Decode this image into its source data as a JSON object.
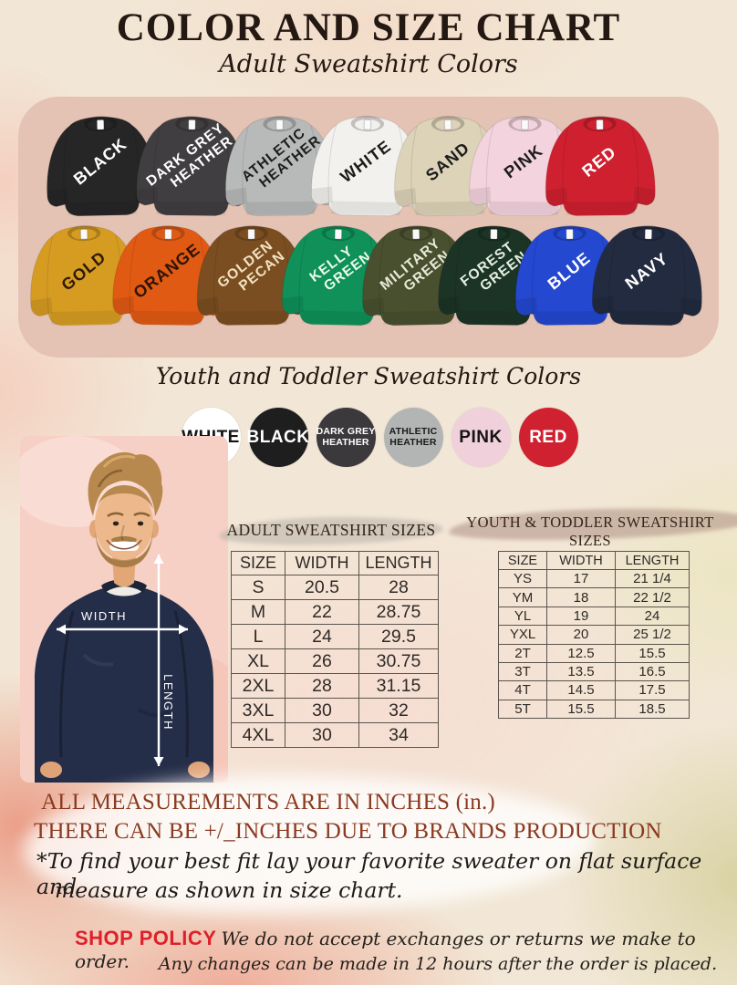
{
  "header": {
    "title": "COLOR AND SIZE CHART",
    "subtitle": "Adult Sweatshirt Colors",
    "youth_heading": "Youth and Toddler Sweatshirt Colors"
  },
  "adult_shirts": [
    {
      "name": "BLACK",
      "lines": [
        "BLACK"
      ],
      "fill": "#262626",
      "label": "#ffffff"
    },
    {
      "name": "DARK GREY HEATHER",
      "lines": [
        "DARK GREY",
        "HEATHER"
      ],
      "fill": "#413e42",
      "label": "#ffffff"
    },
    {
      "name": "ATHLETIC HEATHER",
      "lines": [
        "ATHLETIC",
        "HEATHER"
      ],
      "fill": "#b7bab9",
      "label": "#1c1c1c"
    },
    {
      "name": "WHITE",
      "lines": [
        "WHITE"
      ],
      "fill": "#f2f1ee",
      "label": "#1c1c1c"
    },
    {
      "name": "SAND",
      "lines": [
        "SAND"
      ],
      "fill": "#ddd3b8",
      "label": "#1c1c1c"
    },
    {
      "name": "PINK",
      "lines": [
        "PINK"
      ],
      "fill": "#f3d3de",
      "label": "#1c1c1c"
    },
    {
      "name": "RED",
      "lines": [
        "RED"
      ],
      "fill": "#cf2030",
      "label": "#ffffff"
    },
    {
      "name": "GOLD",
      "lines": [
        "GOLD"
      ],
      "fill": "#d69c22",
      "label": "#2f1a05"
    },
    {
      "name": "ORANGE",
      "lines": [
        "ORANGE"
      ],
      "fill": "#e05a14",
      "label": "#2d1405"
    },
    {
      "name": "GOLDEN PECAN",
      "lines": [
        "GOLDEN",
        "PECAN"
      ],
      "fill": "#7b4e21",
      "label": "#f3e3c2"
    },
    {
      "name": "KELLY GREEN",
      "lines": [
        "KELLY",
        "GREEN"
      ],
      "fill": "#0f9159",
      "label": "#eafbe9"
    },
    {
      "name": "MILITARY GREEN",
      "lines": [
        "MILITARY",
        "GREEN"
      ],
      "fill": "#49502f",
      "label": "#e9ead8"
    },
    {
      "name": "FOREST GREEN",
      "lines": [
        "FOREST",
        "GREEN"
      ],
      "fill": "#1c3425",
      "label": "#e3efdf"
    },
    {
      "name": "BLUE",
      "lines": [
        "BLUE"
      ],
      "fill": "#2448cf",
      "label": "#ffffff"
    },
    {
      "name": "NAVY",
      "lines": [
        "NAVY"
      ],
      "fill": "#222b40",
      "label": "#ffffff"
    }
  ],
  "youth_colors": [
    {
      "name": "WHITE",
      "lines": [
        "WHITE"
      ],
      "fill": "#ffffff",
      "label": "#141414"
    },
    {
      "name": "BLACK",
      "lines": [
        "BLACK"
      ],
      "fill": "#1e1e1e",
      "label": "#ffffff"
    },
    {
      "name": "DARK GREY HEATHER",
      "lines": [
        "DARK GREY",
        "HEATHER"
      ],
      "fill": "#3c393d",
      "label": "#ffffff"
    },
    {
      "name": "ATHLETIC HEATHER",
      "lines": [
        "ATHLETIC",
        "HEATHER"
      ],
      "fill": "#b2b5b4",
      "label": "#1a1a1a"
    },
    {
      "name": "PINK",
      "lines": [
        "PINK"
      ],
      "fill": "#efd0db",
      "label": "#141414"
    },
    {
      "name": "RED",
      "lines": [
        "RED"
      ],
      "fill": "#d02130",
      "label": "#ffffff"
    }
  ],
  "measure_diagram": {
    "width_label": "WIDTH",
    "length_label": "LENGTH"
  },
  "size_tables": {
    "adult": {
      "title": "ADULT SWEATSHIRT SIZES",
      "headers": [
        "SIZE",
        "WIDTH",
        "LENGTH"
      ],
      "rows": [
        [
          "S",
          "20.5",
          "28"
        ],
        [
          "M",
          "22",
          "28.75"
        ],
        [
          "L",
          "24",
          "29.5"
        ],
        [
          "XL",
          "26",
          "30.75"
        ],
        [
          "2XL",
          "28",
          "31.15"
        ],
        [
          "3XL",
          "30",
          "32"
        ],
        [
          "4XL",
          "30",
          "34"
        ]
      ]
    },
    "youth": {
      "title": "YOUTH & TODDLER SWEATSHIRT SIZES",
      "headers": [
        "SIZE",
        "WIDTH",
        "LENGTH"
      ],
      "rows": [
        [
          "YS",
          "17",
          "21 1/4"
        ],
        [
          "YM",
          "18",
          "22 1/2"
        ],
        [
          "YL",
          "19",
          "24"
        ],
        [
          "YXL",
          "20",
          "25 1/2"
        ],
        [
          "2T",
          "12.5",
          "15.5"
        ],
        [
          "3T",
          "13.5",
          "16.5"
        ],
        [
          "4T",
          "14.5",
          "17.5"
        ],
        [
          "5T",
          "15.5",
          "18.5"
        ]
      ]
    }
  },
  "notes": {
    "line1": "ALL MEASUREMENTS ARE IN INCHES (in.)",
    "line2": "THERE CAN BE +/_INCHES DUE TO BRANDS PRODUCTION",
    "line3": "*To find your best fit lay your favorite sweater on flat surface and",
    "line4": "measure as shown in size chart."
  },
  "policy": {
    "label": "SHOP POLICY",
    "line1": "We do not accept exchanges or returns we make to order.",
    "line2": "Any changes can be made in 12 hours after the order is placed."
  },
  "palette": {
    "page_background": "#f2e7d6",
    "panel_pink": "#e4c2b4",
    "photo_pink": "#f7d0c5",
    "note_brown": "#8a3a20",
    "policy_red": "#e02029",
    "table_border": "#5a544d",
    "title_ink": "#241812"
  }
}
